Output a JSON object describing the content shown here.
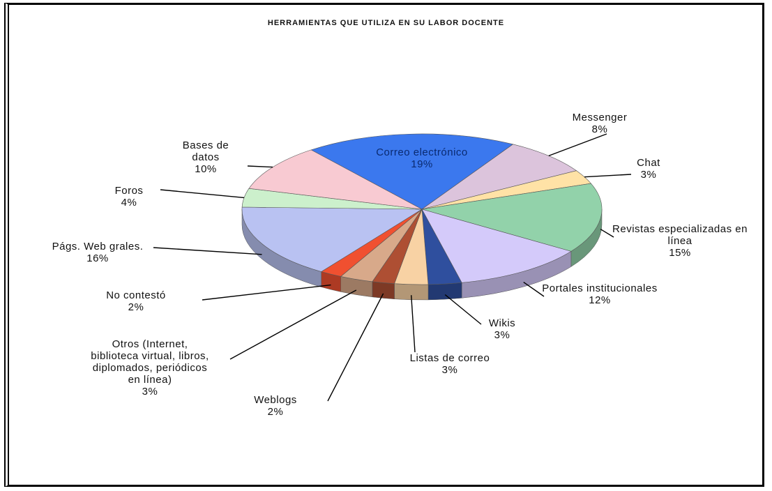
{
  "chart_data": {
    "type": "pie",
    "title": "HERRAMIENTAS QUE UTILIZA EN SU LABOR DOCENTE",
    "categories": [
      "Correo electrónico",
      "Messenger",
      "Chat",
      "Revistas especializadas en línea",
      "Portales institucionales",
      "Wikis",
      "Listas de correo",
      "Weblogs",
      "Otros (Internet, biblioteca virtual, libros, diplomados, periódicos en línea)",
      "No contestó",
      "Págs. Web grales.",
      "Foros",
      "Bases de datos"
    ],
    "values": [
      19,
      8,
      3,
      15,
      12,
      3,
      3,
      2,
      3,
      2,
      16,
      4,
      10
    ],
    "value_labels": [
      "19%",
      "8%",
      "3%",
      "15%",
      "12%",
      "3%",
      "3%",
      "2%",
      "3%",
      "2%",
      "16%",
      "4%",
      "10%"
    ],
    "colors": [
      "#3b78ee",
      "#dcc4dc",
      "#ffe2a6",
      "#92d2aa",
      "#d4cafa",
      "#2f4f9e",
      "#f8d2a4",
      "#ae4f33",
      "#d8a98a",
      "#f05030",
      "#b9c2f2",
      "#ccf0cc",
      "#f8cad2"
    ]
  }
}
